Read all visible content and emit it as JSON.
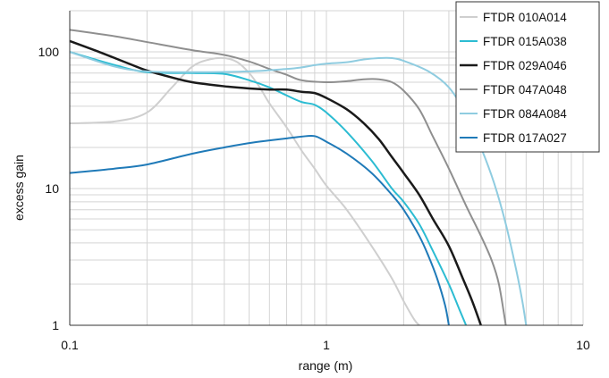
{
  "chart_data": {
    "type": "line",
    "xscale": "log",
    "yscale": "log",
    "xlim": [
      0.1,
      10
    ],
    "ylim": [
      1,
      200
    ],
    "xlabel": "range (m)",
    "ylabel": "excess gain",
    "grid": true,
    "legend_position": "top-right",
    "x_ticks": [
      {
        "value": 0.1,
        "label": "0.1"
      },
      {
        "value": 1,
        "label": "1"
      },
      {
        "value": 10,
        "label": "10"
      }
    ],
    "y_ticks": [
      {
        "value": 1,
        "label": "1"
      },
      {
        "value": 10,
        "label": "10"
      },
      {
        "value": 100,
        "label": "100"
      }
    ],
    "series": [
      {
        "name": "FTDR 010A014",
        "color": "#cfcfcf",
        "width": 2,
        "points": [
          [
            0.1,
            30
          ],
          [
            0.15,
            31
          ],
          [
            0.2,
            36
          ],
          [
            0.25,
            55
          ],
          [
            0.3,
            78
          ],
          [
            0.35,
            88
          ],
          [
            0.4,
            90
          ],
          [
            0.45,
            84
          ],
          [
            0.5,
            70
          ],
          [
            0.55,
            55
          ],
          [
            0.6,
            42
          ],
          [
            0.7,
            28
          ],
          [
            0.8,
            19
          ],
          [
            0.9,
            14
          ],
          [
            1.0,
            10.5
          ],
          [
            1.2,
            7
          ],
          [
            1.5,
            3.8
          ],
          [
            1.8,
            2.2
          ],
          [
            2.0,
            1.5
          ],
          [
            2.2,
            1.1
          ],
          [
            2.3,
            1.0
          ]
        ]
      },
      {
        "name": "FTDR 015A038",
        "color": "#2cbcd2",
        "width": 2,
        "points": [
          [
            0.1,
            100
          ],
          [
            0.15,
            80
          ],
          [
            0.2,
            71
          ],
          [
            0.3,
            70
          ],
          [
            0.4,
            69
          ],
          [
            0.5,
            62
          ],
          [
            0.6,
            55
          ],
          [
            0.7,
            48
          ],
          [
            0.8,
            43
          ],
          [
            0.9,
            41
          ],
          [
            1.0,
            36
          ],
          [
            1.2,
            26
          ],
          [
            1.5,
            16
          ],
          [
            1.8,
            10
          ],
          [
            2.0,
            8
          ],
          [
            2.3,
            5.5
          ],
          [
            2.6,
            3.5
          ],
          [
            3.0,
            2.0
          ],
          [
            3.3,
            1.3
          ],
          [
            3.5,
            1.0
          ]
        ]
      },
      {
        "name": "FTDR 029A046",
        "color": "#1a1a1a",
        "width": 2.5,
        "points": [
          [
            0.1,
            120
          ],
          [
            0.13,
            100
          ],
          [
            0.17,
            82
          ],
          [
            0.2,
            73
          ],
          [
            0.25,
            65
          ],
          [
            0.3,
            60
          ],
          [
            0.4,
            56
          ],
          [
            0.5,
            54
          ],
          [
            0.6,
            53
          ],
          [
            0.7,
            53
          ],
          [
            0.8,
            51
          ],
          [
            0.9,
            50
          ],
          [
            1.0,
            46
          ],
          [
            1.2,
            38
          ],
          [
            1.4,
            30
          ],
          [
            1.6,
            23
          ],
          [
            1.8,
            17
          ],
          [
            2.0,
            13
          ],
          [
            2.3,
            9
          ],
          [
            2.6,
            6
          ],
          [
            3.0,
            3.8
          ],
          [
            3.4,
            2.2
          ],
          [
            3.7,
            1.5
          ],
          [
            4.0,
            1.0
          ]
        ]
      },
      {
        "name": "FTDR 047A048",
        "color": "#8f8f8f",
        "width": 2,
        "points": [
          [
            0.1,
            145
          ],
          [
            0.15,
            130
          ],
          [
            0.2,
            118
          ],
          [
            0.3,
            103
          ],
          [
            0.4,
            95
          ],
          [
            0.5,
            85
          ],
          [
            0.6,
            75
          ],
          [
            0.7,
            68
          ],
          [
            0.8,
            62
          ],
          [
            1.0,
            60
          ],
          [
            1.2,
            61
          ],
          [
            1.4,
            63
          ],
          [
            1.6,
            63
          ],
          [
            1.8,
            60
          ],
          [
            2.0,
            52
          ],
          [
            2.3,
            38
          ],
          [
            2.6,
            24
          ],
          [
            3.0,
            14
          ],
          [
            3.5,
            7.5
          ],
          [
            4.0,
            4.5
          ],
          [
            4.4,
            3.0
          ],
          [
            4.7,
            2.0
          ],
          [
            5.0,
            1.0
          ]
        ]
      },
      {
        "name": "FTDR 084A084",
        "color": "#8fcce0",
        "width": 2,
        "points": [
          [
            0.1,
            100
          ],
          [
            0.15,
            78
          ],
          [
            0.2,
            72
          ],
          [
            0.3,
            71
          ],
          [
            0.5,
            72
          ],
          [
            0.7,
            75
          ],
          [
            0.8,
            77
          ],
          [
            0.9,
            80
          ],
          [
            1.0,
            82
          ],
          [
            1.2,
            84
          ],
          [
            1.4,
            88
          ],
          [
            1.6,
            90
          ],
          [
            1.8,
            90
          ],
          [
            2.0,
            86
          ],
          [
            2.5,
            72
          ],
          [
            3.0,
            55
          ],
          [
            3.5,
            35
          ],
          [
            4.0,
            20
          ],
          [
            4.5,
            11
          ],
          [
            5.0,
            5.5
          ],
          [
            5.5,
            2.5
          ],
          [
            5.8,
            1.5
          ],
          [
            6.0,
            1.0
          ]
        ]
      },
      {
        "name": "FTDR 017A027",
        "color": "#1f7ab8",
        "width": 2,
        "points": [
          [
            0.1,
            13
          ],
          [
            0.15,
            14
          ],
          [
            0.2,
            15
          ],
          [
            0.3,
            18
          ],
          [
            0.4,
            20
          ],
          [
            0.5,
            21.5
          ],
          [
            0.6,
            22.5
          ],
          [
            0.7,
            23.3
          ],
          [
            0.8,
            24
          ],
          [
            0.9,
            24.2
          ],
          [
            1.0,
            22
          ],
          [
            1.2,
            18
          ],
          [
            1.5,
            13
          ],
          [
            1.8,
            9
          ],
          [
            2.0,
            7
          ],
          [
            2.3,
            4.5
          ],
          [
            2.5,
            3.2
          ],
          [
            2.7,
            2.2
          ],
          [
            2.9,
            1.4
          ],
          [
            3.0,
            1.0
          ]
        ]
      }
    ]
  }
}
